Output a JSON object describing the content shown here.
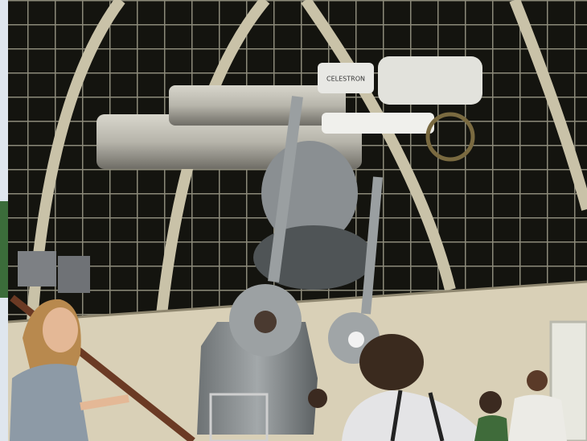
{
  "image": {
    "label_text": "CELESTRON"
  }
}
